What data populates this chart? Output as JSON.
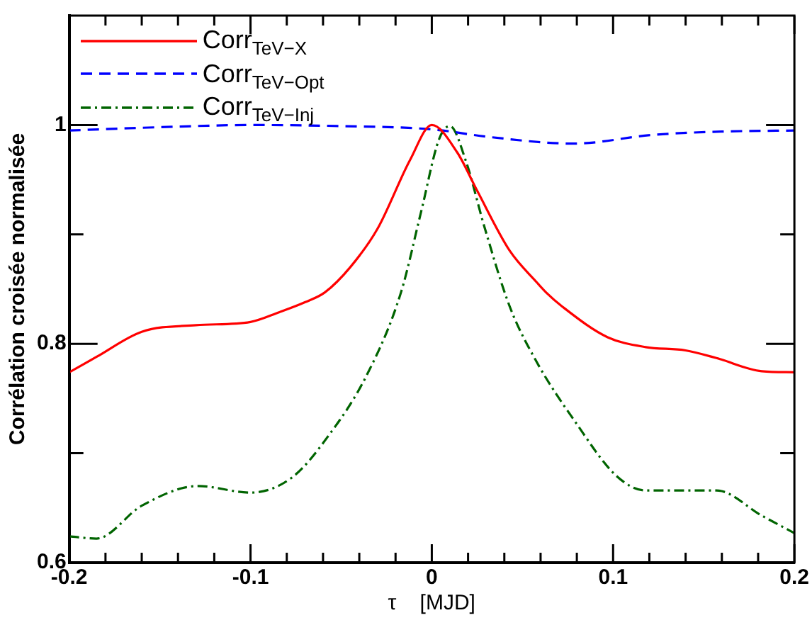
{
  "chart_data": {
    "type": "line",
    "xlabel": "τ    [MJD]",
    "ylabel": "Corrélation croisée normalisée",
    "xlim": [
      -0.2,
      0.2
    ],
    "xticks": [
      -0.2,
      {
        "value": -0.18,
        "label": null
      },
      {
        "value": -0.16,
        "label": null
      },
      {
        "value": -0.14,
        "label": null
      },
      {
        "value": -0.12,
        "label": null
      },
      -0.1,
      {
        "value": -0.08,
        "label": null
      },
      {
        "value": -0.06,
        "label": null
      },
      {
        "value": -0.04,
        "label": null
      },
      {
        "value": -0.02,
        "label": null
      },
      0,
      {
        "value": 0.02,
        "label": null
      },
      {
        "value": 0.04,
        "label": null
      },
      {
        "value": 0.06,
        "label": null
      },
      {
        "value": 0.08,
        "label": null
      },
      0.1,
      {
        "value": 0.12,
        "label": null
      },
      {
        "value": 0.14,
        "label": null
      },
      {
        "value": 0.16,
        "label": null
      },
      {
        "value": 0.18,
        "label": null
      },
      0.2
    ],
    "ylim": [
      0.6,
      1.1
    ],
    "yticks": [
      0.6,
      {
        "value": 0.7,
        "label": null
      },
      0.8,
      {
        "value": 0.9,
        "label": null
      },
      1
    ],
    "grid": false,
    "legend": "top left",
    "marker": "none",
    "series": [
      {
        "name": "Corr$_{TeV−X}$",
        "color": "#ff0000",
        "line_style": "solid",
        "x": [
          -0.2,
          -0.185,
          -0.16,
          -0.13,
          -0.1,
          -0.084,
          -0.07,
          -0.059,
          -0.045,
          -0.03,
          -0.012,
          0,
          0.014,
          0.025,
          0.043,
          0.058,
          0.063,
          0.072,
          0.097,
          0.118,
          0.14,
          0.157,
          0.182,
          0.2
        ],
        "values": [
          0.774,
          0.788,
          0.811,
          0.817,
          0.82,
          0.829,
          0.838,
          0.847,
          0.87,
          0.905,
          0.968,
          1.0,
          0.975,
          0.94,
          0.885,
          0.856,
          0.847,
          0.834,
          0.806,
          0.797,
          0.794,
          0.787,
          0.775,
          0.774
        ]
      },
      {
        "name": "Corr$_{TeV−Opt}$",
        "color": "#0000ff",
        "line_style": "dashed",
        "x": [
          -0.2,
          -0.15,
          -0.1,
          -0.05,
          0,
          0.032,
          0.078,
          0.122,
          0.16,
          0.2
        ],
        "values": [
          0.995,
          0.998,
          1.0,
          0.999,
          0.996,
          0.989,
          0.983,
          0.991,
          0.994,
          0.995
        ]
      },
      {
        "name": "Corr$_{TeV−Inj}$",
        "color": "#006400",
        "line_style": "dashdot",
        "x": [
          -0.2,
          -0.185,
          -0.16,
          -0.129,
          -0.1,
          -0.077,
          -0.057,
          -0.036,
          -0.017,
          -0.006,
          0.004,
          0.01,
          0.019,
          0.029,
          0.043,
          0.058,
          0.079,
          0.102,
          0.118,
          0.157,
          0.182,
          0.2
        ],
        "values": [
          0.624,
          0.622,
          0.652,
          0.67,
          0.664,
          0.678,
          0.716,
          0.771,
          0.847,
          0.92,
          0.987,
          0.999,
          0.966,
          0.907,
          0.834,
          0.783,
          0.729,
          0.679,
          0.666,
          0.666,
          0.643,
          0.627
        ]
      }
    ]
  }
}
